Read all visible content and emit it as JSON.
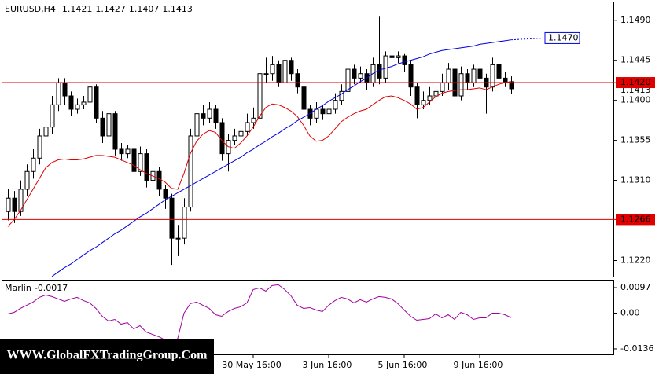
{
  "chart_data": [
    {
      "type": "candlestick",
      "title": "EURUSD,H4",
      "categories": [
        null,
        null,
        null,
        null,
        null,
        null,
        null,
        null,
        null,
        null,
        null,
        null,
        null,
        null,
        null,
        null,
        null,
        null,
        null,
        null,
        null,
        null,
        null,
        null,
        null,
        null,
        null,
        null,
        null,
        null,
        null,
        null,
        null,
        null,
        null,
        null,
        null,
        null,
        null,
        "30 May 16:00",
        null,
        null,
        null,
        null,
        null,
        null,
        null,
        null,
        null,
        null,
        null,
        "3 Jun 16:00",
        null,
        null,
        null,
        null,
        null,
        null,
        null,
        null,
        null,
        null,
        null,
        "5 Jun 16:00",
        null,
        null,
        null,
        null,
        null,
        null,
        null,
        null,
        null,
        null,
        null,
        "9 Jun 16:00",
        null,
        null,
        null,
        null,
        null
      ],
      "open": [
        1.1275,
        1.129,
        1.1275,
        1.13,
        1.132,
        1.1335,
        1.136,
        1.137,
        1.1395,
        1.142,
        1.1405,
        1.139,
        1.1395,
        1.1398,
        1.1415,
        1.138,
        1.136,
        1.1385,
        1.1345,
        1.134,
        1.1345,
        1.132,
        1.134,
        1.131,
        1.132,
        1.13,
        1.129,
        1.1245,
        1.1245,
        1.128,
        1.136,
        1.1385,
        1.138,
        1.139,
        1.1375,
        1.134,
        1.1355,
        1.136,
        1.1365,
        1.1375,
        1.138,
        1.143,
        1.143,
        1.144,
        1.142,
        1.1445,
        1.143,
        1.1415,
        1.139,
        1.138,
        1.139,
        1.1385,
        1.139,
        1.14,
        1.141,
        1.1435,
        1.1425,
        1.143,
        1.142,
        1.144,
        1.1425,
        1.145,
        1.1448,
        1.145,
        1.144,
        1.1415,
        1.1395,
        1.14,
        1.1405,
        1.141,
        1.142,
        1.1435,
        1.1405,
        1.143,
        1.142,
        1.1435,
        1.1425,
        1.1415,
        1.144,
        1.1425,
        1.1421
      ],
      "high": [
        1.13,
        1.1298,
        1.131,
        1.1328,
        1.1345,
        1.1368,
        1.138,
        1.1405,
        1.1425,
        1.1425,
        1.141,
        1.1402,
        1.1405,
        1.1422,
        1.1418,
        1.1388,
        1.1392,
        1.1388,
        1.1352,
        1.135,
        1.135,
        1.1348,
        1.1345,
        1.1328,
        1.1325,
        1.1305,
        1.1295,
        1.126,
        1.129,
        1.1368,
        1.1392,
        1.1395,
        1.1398,
        1.1395,
        1.138,
        1.1362,
        1.1368,
        1.1372,
        1.1385,
        1.1392,
        1.1438,
        1.1448,
        1.145,
        1.1445,
        1.1452,
        1.1448,
        1.1435,
        1.142,
        1.1395,
        1.1398,
        1.1395,
        1.1398,
        1.1408,
        1.1418,
        1.144,
        1.144,
        1.1438,
        1.1435,
        1.1448,
        1.1494,
        1.1455,
        1.1458,
        1.1455,
        1.1452,
        1.1445,
        1.142,
        1.141,
        1.1415,
        1.142,
        1.143,
        1.1442,
        1.1438,
        1.1438,
        1.1435,
        1.144,
        1.144,
        1.143,
        1.1448,
        1.1445,
        1.1432,
        1.1427
      ],
      "low": [
        1.1265,
        1.1262,
        1.127,
        1.1292,
        1.1312,
        1.1328,
        1.135,
        1.1362,
        1.1388,
        1.1395,
        1.1382,
        1.1385,
        1.139,
        1.1392,
        1.1375,
        1.1352,
        1.1355,
        1.1338,
        1.1332,
        1.1335,
        1.1312,
        1.1315,
        1.1302,
        1.1298,
        1.1292,
        1.1278,
        1.1215,
        1.1225,
        1.1238,
        1.1275,
        1.1352,
        1.1372,
        1.1375,
        1.1368,
        1.1332,
        1.132,
        1.135,
        1.1355,
        1.136,
        1.1368,
        1.1375,
        1.142,
        1.1422,
        1.1415,
        1.1418,
        1.1422,
        1.1408,
        1.1382,
        1.1372,
        1.1375,
        1.1378,
        1.138,
        1.1385,
        1.1395,
        1.1405,
        1.1418,
        1.142,
        1.1412,
        1.1415,
        1.1418,
        1.142,
        1.144,
        1.1442,
        1.1432,
        1.1405,
        1.138,
        1.139,
        1.1395,
        1.1398,
        1.1405,
        1.1412,
        1.1398,
        1.14,
        1.1412,
        1.1415,
        1.1418,
        1.1385,
        1.141,
        1.142,
        1.1415,
        1.1407
      ],
      "close": [
        1.129,
        1.1275,
        1.13,
        1.132,
        1.1335,
        1.136,
        1.137,
        1.1395,
        1.142,
        1.1405,
        1.139,
        1.1395,
        1.1398,
        1.1415,
        1.138,
        1.136,
        1.1385,
        1.1345,
        1.134,
        1.1345,
        1.132,
        1.134,
        1.131,
        1.132,
        1.13,
        1.129,
        1.1245,
        1.1245,
        1.128,
        1.136,
        1.1385,
        1.138,
        1.139,
        1.1375,
        1.134,
        1.1355,
        1.136,
        1.1365,
        1.1375,
        1.138,
        1.143,
        1.143,
        1.144,
        1.142,
        1.1445,
        1.143,
        1.1415,
        1.139,
        1.138,
        1.139,
        1.1385,
        1.139,
        1.14,
        1.141,
        1.1435,
        1.1425,
        1.143,
        1.142,
        1.144,
        1.1425,
        1.145,
        1.1448,
        1.145,
        1.144,
        1.1415,
        1.1395,
        1.14,
        1.1405,
        1.141,
        1.142,
        1.1435,
        1.1405,
        1.143,
        1.142,
        1.1435,
        1.1425,
        1.1415,
        1.144,
        1.1425,
        1.1421,
        1.1413
      ],
      "lines": [
        {
          "color": "#e00000",
          "values": [
            1.1258,
            1.1266,
            1.1276,
            1.1288,
            1.13,
            1.1312,
            1.1324,
            1.133,
            1.1333,
            1.1334,
            1.1333,
            1.1333,
            1.1334,
            1.1336,
            1.1338,
            1.1338,
            1.1337,
            1.1336,
            1.1333,
            1.133,
            1.1327,
            1.1322,
            1.1318,
            1.1315,
            1.1312,
            1.1308,
            1.1301,
            1.13,
            1.1318,
            1.134,
            1.1354,
            1.1362,
            1.1366,
            1.1364,
            1.1355,
            1.1348,
            1.1346,
            1.1352,
            1.136,
            1.137,
            1.1382,
            1.1392,
            1.1396,
            1.1395,
            1.1392,
            1.1388,
            1.1382,
            1.1372,
            1.136,
            1.1354,
            1.1355,
            1.136,
            1.1368,
            1.1376,
            1.1381,
            1.1385,
            1.1388,
            1.139,
            1.1395,
            1.14,
            1.1404,
            1.1405,
            1.1403,
            1.14,
            1.1396,
            1.139,
            1.1392,
            1.1398,
            1.1404,
            1.1408,
            1.141,
            1.1411,
            1.1412,
            1.1412,
            1.1413,
            1.1414,
            1.1412,
            1.1415,
            1.1418,
            1.142,
            1.1421
          ]
        },
        {
          "color": "#0000e0",
          "values": [
            null,
            null,
            null,
            null,
            null,
            null,
            null,
            1.1202,
            1.1207,
            1.1212,
            1.1216,
            1.1221,
            1.1226,
            1.1231,
            1.1235,
            1.124,
            1.1245,
            1.125,
            1.1254,
            1.1259,
            1.1264,
            1.1269,
            1.1273,
            1.1278,
            1.1283,
            1.1288,
            1.1292,
            1.1296,
            1.13,
            1.1304,
            1.1308,
            1.1312,
            1.1316,
            1.132,
            1.1324,
            1.1328,
            1.1332,
            1.1336,
            1.1341,
            1.1345,
            1.135,
            1.1354,
            1.1359,
            1.1363,
            1.1368,
            1.1372,
            1.1377,
            1.1381,
            1.1385,
            1.139,
            1.1394,
            1.1399,
            1.1403,
            1.1407,
            1.1412,
            1.1416,
            1.1421,
            1.1425,
            1.143,
            1.1434,
            1.1436,
            1.1438,
            1.1441,
            1.1443,
            1.1445,
            1.1447,
            1.1449,
            1.1452,
            1.1454,
            1.1456,
            1.1457,
            1.1458,
            1.1459,
            1.146,
            1.1461,
            1.1463,
            1.1464,
            1.1465,
            1.1466,
            1.1467,
            1.1468
          ]
        }
      ],
      "projection": {
        "value": 1.147,
        "label": "1.1470"
      },
      "levels": [
        {
          "value": 1.142,
          "label": "1.1420"
        },
        1.1266
      ],
      "level_color": "#e00000",
      "ylim": [
        1.1201,
        1.1511
      ],
      "yticks": [
        {
          "value": 1.149,
          "label": "1.1490"
        },
        1.1445,
        {
          "value": 1.14,
          "label": "1.1400"
        },
        1.1355,
        {
          "value": 1.131,
          "label": "1.1310"
        },
        {
          "value": 1.122,
          "label": "1.1220"
        }
      ]
    },
    {
      "type": "line",
      "title": "Marlin",
      "color": "#a000a0",
      "values": [
        -0.0003,
        0.0003,
        0.0018,
        0.003,
        0.0042,
        0.006,
        0.0069,
        0.0063,
        0.0054,
        0.0045,
        0.0054,
        0.006,
        0.0048,
        0.0039,
        0.0018,
        -0.0012,
        -0.003,
        -0.0024,
        -0.0042,
        -0.0036,
        -0.006,
        -0.0048,
        -0.0072,
        -0.0081,
        -0.009,
        -0.0102,
        -0.012,
        -0.0096,
        0.0,
        0.0036,
        0.0042,
        0.003,
        0.0018,
        -0.0006,
        -0.0012,
        0.0006,
        0.0018,
        0.0024,
        0.0039,
        0.009,
        0.0096,
        0.0084,
        0.0105,
        0.0108,
        0.009,
        0.0066,
        0.003,
        0.0018,
        0.0021,
        0.0012,
        0.0006,
        0.003,
        0.0048,
        0.006,
        0.0054,
        0.0039,
        0.0051,
        0.0042,
        0.0054,
        0.0063,
        0.006,
        0.0054,
        0.0036,
        0.0012,
        -0.0012,
        -0.0027,
        -0.0024,
        -0.0021,
        -0.0003,
        -0.0018,
        -0.0006,
        -0.0024,
        0.0003,
        -0.0006,
        -0.0024,
        -0.0018,
        -0.0018,
        0.0,
        0.0,
        -0.0006,
        -0.0017
      ],
      "ylim": [
        -0.016,
        0.0127
      ],
      "yticks": [
        0.0097,
        {
          "value": 0,
          "label": "0.00"
        },
        -0.0136
      ]
    }
  ],
  "watermark": "WWW.GlobalFXTradingGroup.Com"
}
